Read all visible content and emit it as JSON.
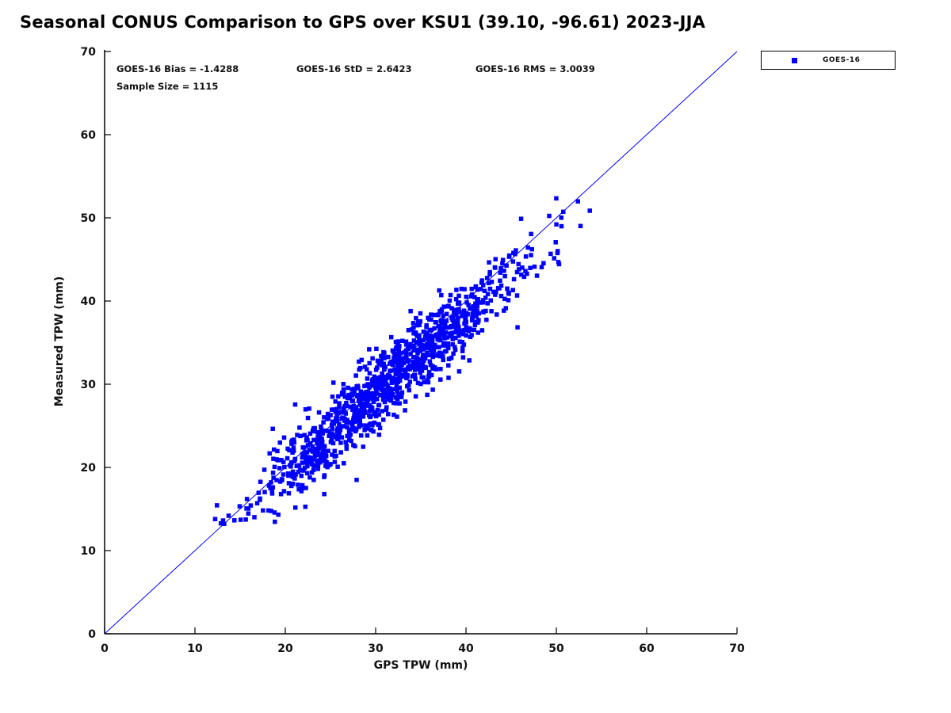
{
  "chart": {
    "title": "Seasonal CONUS Comparison to GPS over KSU1 (39.10, -96.61) 2023-JJA",
    "xlabel": "GPS TPW (mm)",
    "ylabel": "Measured TPW (mm)",
    "stats_display": {
      "bias": "GOES-16 Bias = -1.4288",
      "std": "GOES-16 StD = 2.6423",
      "rms": "GOES-16 RMS = 3.0039",
      "sample_size": "Sample Size = 1115"
    },
    "legend": {
      "label": "GOES-16",
      "marker": "square",
      "marker_color": "#0000ff"
    }
  },
  "chart_data": {
    "type": "scatter",
    "title": "Seasonal CONUS Comparison to GPS over KSU1 (39.10, -96.61) 2023-JJA",
    "xlabel": "GPS TPW (mm)",
    "ylabel": "Measured TPW (mm)",
    "xlim": [
      0,
      70
    ],
    "ylim": [
      0,
      70
    ],
    "xticks": [
      0,
      10,
      20,
      30,
      40,
      50,
      60,
      70
    ],
    "yticks": [
      0,
      10,
      20,
      30,
      40,
      50,
      60,
      70
    ],
    "grid": false,
    "legend_position": "outside-top-right",
    "reference_line": {
      "type": "identity",
      "from": [
        0,
        0
      ],
      "to": [
        70,
        70
      ],
      "color": "#0000ff"
    },
    "stats": {
      "bias": -1.4288,
      "std": 2.6423,
      "rms": 3.0039,
      "sample_size": 1115
    },
    "series": [
      {
        "name": "GOES-16",
        "marker": "square",
        "color": "#0000ff",
        "n_points": 1115,
        "x_range": [
          11,
          55.5
        ],
        "y_range": [
          13.2,
          53.5
        ],
        "x_mean": 31.5,
        "x_sd": 7.8,
        "fit": {
          "slope": 0.95,
          "intercept": 0.2,
          "scatter_sd": 2.2
        },
        "seed": 20230611
      }
    ]
  }
}
